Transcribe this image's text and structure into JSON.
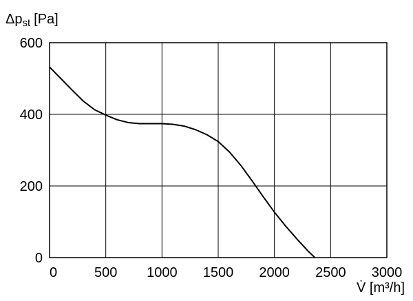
{
  "chart_data": {
    "type": "line",
    "ylabel": [
      "Δp",
      "st",
      "[Pa]"
    ],
    "xlabel": "V̇ [m³/h]",
    "x": [
      0,
      100,
      200,
      300,
      400,
      500,
      600,
      700,
      800,
      900,
      1000,
      1100,
      1200,
      1300,
      1400,
      1500,
      1600,
      1700,
      1800,
      1900,
      2000,
      2100,
      2200,
      2300,
      2360
    ],
    "series": [
      {
        "color": "#000000",
        "values": [
          532,
          500,
          468,
          437,
          413,
          398,
          385,
          377,
          374,
          374,
          374,
          372,
          367,
          357,
          343,
          324,
          295,
          258,
          215,
          170,
          127,
          88,
          52,
          18,
          0
        ]
      }
    ],
    "xlim": [
      0,
      3000
    ],
    "xticks": [
      0,
      500,
      1000,
      1500,
      2000,
      2500,
      3000
    ],
    "ylim": [
      0,
      600
    ],
    "yticks": [
      0,
      200,
      400,
      600
    ],
    "grid": true
  }
}
